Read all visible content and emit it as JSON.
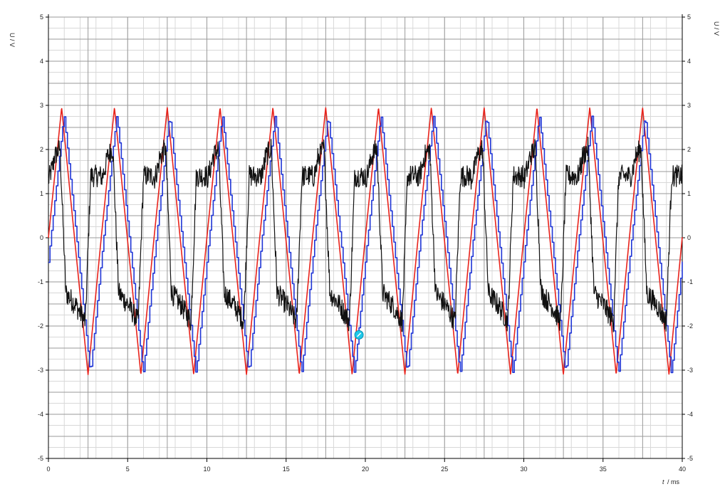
{
  "chart_data": {
    "type": "line",
    "x_label_italic": "t",
    "x_label_unit": "/ ms",
    "y_label_left": "U / V",
    "y_label_right": "U / V",
    "xlim": [
      0,
      40
    ],
    "ylim": [
      -5,
      5
    ],
    "x_ticks": [
      0,
      5,
      10,
      15,
      20,
      25,
      30,
      35,
      40
    ],
    "y_ticks": [
      -5,
      -4,
      -3,
      -2,
      -1,
      0,
      1,
      2,
      3,
      4,
      5
    ],
    "grid": true,
    "legend": "none",
    "period_ms": 3.333,
    "series": [
      {
        "color": "#e8231c",
        "shape": "triangle",
        "amplitude_high": 2.95,
        "amplitude_low": -3.1,
        "phase_ms": 0.0,
        "peak_fraction": 0.25
      },
      {
        "color": "#1f35d6",
        "shape": "stepped-triangle",
        "amplitude_high": 2.8,
        "amplitude_low": -3.1,
        "phase_ms": 0.15,
        "peak_fraction": 0.25,
        "step_ms": 0.1
      },
      {
        "color": "#111111",
        "shape": "noisy-square",
        "level_high": 1.4,
        "level_low": -1.25,
        "phase_ms": 0.0,
        "noise": 0.25
      }
    ],
    "marker": {
      "color": "#1ec8e8",
      "x": 19.6,
      "y": -2.2
    }
  }
}
